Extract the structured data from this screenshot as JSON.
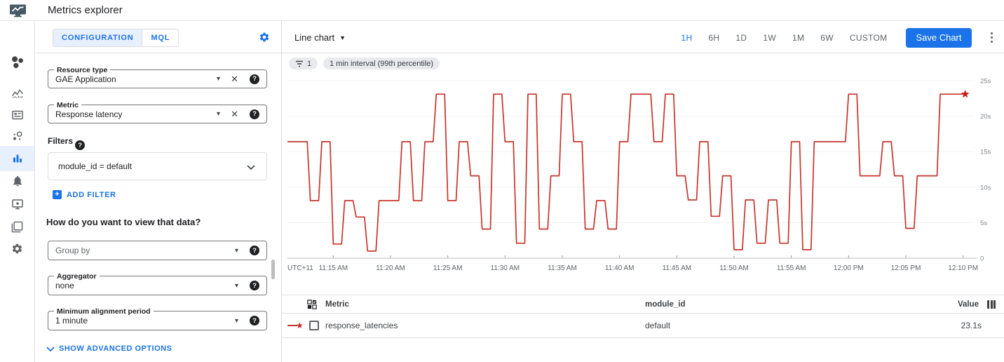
{
  "app": {
    "title": "Metrics explorer"
  },
  "nav": {
    "icons": [
      "monitoring-logo",
      "overview",
      "dashboards",
      "services",
      "service-monitoring",
      "metrics-explorer",
      "alerting",
      "uptime-checks",
      "groups",
      "settings"
    ],
    "active": "metrics-explorer"
  },
  "config": {
    "tabs": [
      {
        "label": "CONFIGURATION"
      },
      {
        "label": "MQL"
      }
    ],
    "active_tab": "CONFIGURATION",
    "resource_type": {
      "label": "Resource type",
      "value": "GAE Application"
    },
    "metric": {
      "label": "Metric",
      "value": "Response latency"
    },
    "filters": {
      "label": "Filters",
      "value": "module_id = default",
      "add_label": "ADD FILTER"
    },
    "view_question": "How do you want to view that data?",
    "group_by": {
      "placeholder": "Group by"
    },
    "aggregator": {
      "label": "Aggregator",
      "value": "none"
    },
    "alignment": {
      "label": "Minimum alignment period",
      "value": "1 minute"
    },
    "advanced_label": "SHOW ADVANCED OPTIONS"
  },
  "toolbar": {
    "chart_type": "Line chart",
    "time_ranges": [
      "1H",
      "6H",
      "1D",
      "1W",
      "1M",
      "6W",
      "CUSTOM"
    ],
    "selected_range": "1H",
    "save_label": "Save Chart"
  },
  "chips": {
    "filter_count": "1",
    "interval": "1 min interval (99th percentile)"
  },
  "chart_data": {
    "type": "line",
    "title": "Response latency (99th percentile), 1 min interval",
    "unit": "s",
    "ylim": [
      0,
      25
    ],
    "grid": "horizontal",
    "x_start_label": "11:11 AM",
    "x_interval_minutes": 1,
    "series": [
      {
        "name": "response_latencies",
        "module_id": "default",
        "color": "#c7342c",
        "values": [
          16.4,
          16.4,
          8.1,
          16.4,
          2.0,
          8.1,
          5.8,
          1.0,
          8.1,
          8.1,
          16.4,
          8.1,
          16.4,
          23.1,
          8.1,
          16.4,
          11.6,
          4.1,
          23.1,
          16.4,
          2.1,
          23.1,
          4.1,
          11.6,
          23.1,
          16.4,
          4.1,
          8.1,
          4.1,
          16.4,
          23.1,
          23.1,
          16.4,
          23.1,
          11.6,
          8.2,
          16.4,
          5.9,
          11.6,
          1.2,
          8.2,
          2.1,
          8.2,
          2.1,
          16.4,
          1.2,
          16.4,
          16.4,
          16.4,
          23.1,
          11.6,
          11.6,
          16.4,
          11.6,
          4.2,
          11.6,
          11.6,
          23.1,
          23.1,
          23.1
        ]
      }
    ],
    "end_marker": {
      "type": "star",
      "color": "#c5221f",
      "value": 23.1
    },
    "y_ticks": [
      {
        "v": 25,
        "label": "25s"
      },
      {
        "v": 20,
        "label": "20s"
      },
      {
        "v": 15,
        "label": "15s"
      },
      {
        "v": 10,
        "label": "10s"
      },
      {
        "v": 5,
        "label": "5s"
      },
      {
        "v": 0,
        "label": "0"
      }
    ],
    "x_ticks": [
      {
        "label": "UTC+11",
        "minute": null
      },
      {
        "label": "11:15 AM",
        "minute": 4
      },
      {
        "label": "11:20 AM",
        "minute": 9
      },
      {
        "label": "11:25 AM",
        "minute": 14
      },
      {
        "label": "11:30 AM",
        "minute": 19
      },
      {
        "label": "11:35 AM",
        "minute": 24
      },
      {
        "label": "11:40 AM",
        "minute": 29
      },
      {
        "label": "11:45 AM",
        "minute": 34
      },
      {
        "label": "11:50 AM",
        "minute": 39
      },
      {
        "label": "11:55 AM",
        "minute": 44
      },
      {
        "label": "12:00 PM",
        "minute": 49
      },
      {
        "label": "12:05 PM",
        "minute": 54
      },
      {
        "label": "12:10 PM",
        "minute": 59
      }
    ]
  },
  "table": {
    "columns": [
      "Metric",
      "module_id",
      "Value"
    ],
    "rows": [
      {
        "metric": "response_latencies",
        "module_id": "default",
        "value": "23.1s"
      }
    ]
  },
  "colors": {
    "accent": "#1a73e8",
    "line": "#c7342c",
    "star": "#c5221f",
    "tab_bg": "#e8f0fe",
    "chip_bg": "#e8eaed"
  }
}
